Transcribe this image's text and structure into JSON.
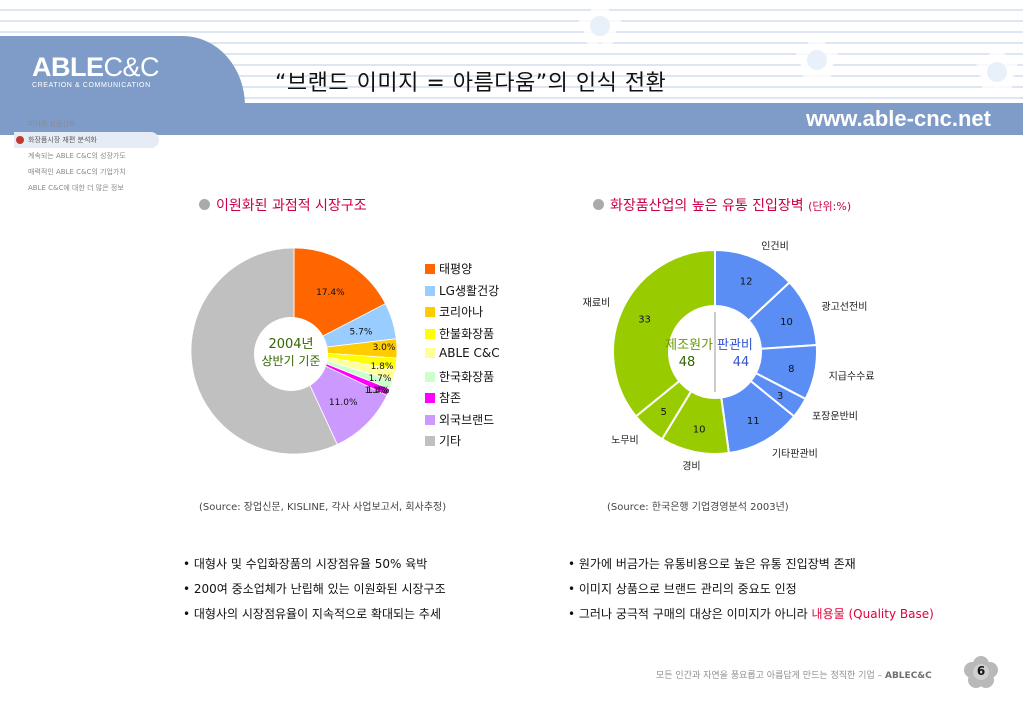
{
  "header": {
    "logo_main": "ABLE",
    "logo_main_thin": "C&C",
    "logo_sub": "CREATION & COMMUNICATION",
    "title": "“브랜드 이미지 = 아름다움”의 인식 전환",
    "site_url": "www.able-cnc.net"
  },
  "nav": {
    "items": [
      {
        "label": "미샤의 성공신화",
        "active": false
      },
      {
        "label": "화장품시장 재편 분석화",
        "active": true
      },
      {
        "label": "계속되는 ABLE C&C의 성장가도",
        "active": false
      },
      {
        "label": "매력적인 ABLE C&C의 기업가치",
        "active": false
      },
      {
        "label": "ABLE C&C에 대한 더 많은 정보",
        "active": false
      }
    ]
  },
  "left_section": {
    "heading": "이원화된 과점적 시장구조",
    "source": "(Source: 장업신문, KISLINE, 각사 사업보고서, 회사추정)",
    "bullets": [
      "• 대형사 및 수입화장품의 시장점유율 50% 육박",
      "• 200여 중소업체가 난립해 있는 이원화된 시장구조",
      "• 대형사의 시장점유율이 지속적으로 확대되는 추세"
    ]
  },
  "right_section": {
    "heading": "화장품산업의 높은 유통 진입장벽",
    "unit": "(단위:%)",
    "source": "(Source: 한국은행 기업경영분석 2003년)",
    "bullets": [
      {
        "text": "• 원가에 버금가는 유통비용으로 높은 유통 진입장벽 존재"
      },
      {
        "text": "• 이미지 상품으로 브랜드 관리의 중요도 인정"
      },
      {
        "text": "• 그러나 궁극적 구매의 대상은 이미지가 아니라 ",
        "highlight": "내용물 (Quality Base)"
      }
    ]
  },
  "footer": {
    "tagline": "모든 인간과 자연을 풍요롭고 아름답게 만드는 정직한 기업 – ",
    "tagline_brand": "ABLEC&C",
    "page_number": "6"
  },
  "chart_data": [
    {
      "type": "pie",
      "title": "이원화된 과점적 시장구조",
      "center_label": [
        "2004년",
        "상반기 기준"
      ],
      "categories": [
        "태평양",
        "LG생활건강",
        "코리아나",
        "한불화장품",
        "ABLE C&C",
        "한국화장품",
        "참존",
        "외국브랜드",
        "기타"
      ],
      "values": [
        17.4,
        5.7,
        3.0,
        1.8,
        1.7,
        1.4,
        1.1,
        11.0,
        56.9
      ],
      "data_labels": [
        "17.4%",
        "5.7%",
        "3.0%",
        "1.8%",
        "1.7%",
        "1.4%",
        "1.1%",
        "11.0%",
        ""
      ],
      "colors": [
        "#ff6600",
        "#99ccff",
        "#ffcc00",
        "#ffff00",
        "#ffff99",
        "#ccffcc",
        "#ff00ff",
        "#cc99ff",
        "#c0c0c0"
      ],
      "legend": "right"
    },
    {
      "type": "pie",
      "subtype": "donut",
      "title": "화장품산업의 높은 유통 진입장벽",
      "unit": "(단위:%)",
      "groups": [
        {
          "name": "판관비",
          "value": 44,
          "color": "#5b8ef5"
        },
        {
          "name": "제조원가",
          "value": 48,
          "color": "#99cc00"
        }
      ],
      "categories": [
        "인건비",
        "광고선전비",
        "지급수수료",
        "포장운반비",
        "기타판관비",
        "경비",
        "노무비",
        "재료비"
      ],
      "values": [
        12,
        10,
        8,
        3,
        11,
        10,
        5,
        33
      ],
      "group_of": [
        "판관비",
        "판관비",
        "판관비",
        "판관비",
        "판관비",
        "제조원가",
        "제조원가",
        "제조원가"
      ],
      "colors": [
        "#5b8ef5",
        "#5b8ef5",
        "#5b8ef5",
        "#5b8ef5",
        "#5b8ef5",
        "#99cc00",
        "#99cc00",
        "#99cc00"
      ]
    }
  ]
}
